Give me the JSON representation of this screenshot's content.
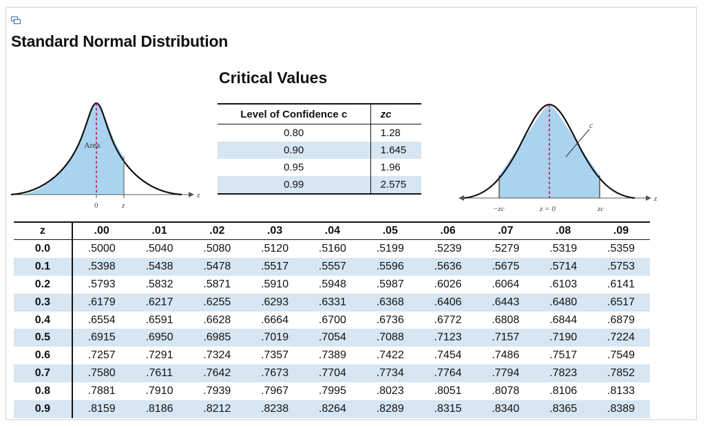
{
  "page": {
    "title": "Standard Normal Distribution"
  },
  "critical_values": {
    "title": "Critical Values",
    "header_confidence": "Level of Confidence c",
    "header_z": "zc",
    "rows": [
      {
        "c": "0.80",
        "z": "1.28"
      },
      {
        "c": "0.90",
        "z": "1.645"
      },
      {
        "c": "0.95",
        "z": "1.96"
      },
      {
        "c": "0.99",
        "z": "2.575"
      }
    ]
  },
  "left_curve": {
    "area_label": "Area",
    "tick_zero": "0",
    "tick_z": "z",
    "axis_label": "z"
  },
  "right_curve": {
    "c_label": "c",
    "tick_neg": "−zc",
    "tick_mid": "z = 0",
    "tick_pos": "zc",
    "axis_label": "z"
  },
  "z_table": {
    "headers": [
      "z",
      ".00",
      ".01",
      ".02",
      ".03",
      ".04",
      ".05",
      ".06",
      ".07",
      ".08",
      ".09"
    ],
    "rows": [
      {
        "z": "0.0",
        "values": [
          ".5000",
          ".5040",
          ".5080",
          ".5120",
          ".5160",
          ".5199",
          ".5239",
          ".5279",
          ".5319",
          ".5359"
        ]
      },
      {
        "z": "0.1",
        "values": [
          ".5398",
          ".5438",
          ".5478",
          ".5517",
          ".5557",
          ".5596",
          ".5636",
          ".5675",
          ".5714",
          ".5753"
        ]
      },
      {
        "z": "0.2",
        "values": [
          ".5793",
          ".5832",
          ".5871",
          ".5910",
          ".5948",
          ".5987",
          ".6026",
          ".6064",
          ".6103",
          ".6141"
        ]
      },
      {
        "z": "0.3",
        "values": [
          ".6179",
          ".6217",
          ".6255",
          ".6293",
          ".6331",
          ".6368",
          ".6406",
          ".6443",
          ".6480",
          ".6517"
        ]
      },
      {
        "z": "0.4",
        "values": [
          ".6554",
          ".6591",
          ".6628",
          ".6664",
          ".6700",
          ".6736",
          ".6772",
          ".6808",
          ".6844",
          ".6879"
        ]
      },
      {
        "z": "0.5",
        "values": [
          ".6915",
          ".6950",
          ".6985",
          ".7019",
          ".7054",
          ".7088",
          ".7123",
          ".7157",
          ".7190",
          ".7224"
        ]
      },
      {
        "z": "0.6",
        "values": [
          ".7257",
          ".7291",
          ".7324",
          ".7357",
          ".7389",
          ".7422",
          ".7454",
          ".7486",
          ".7517",
          ".7549"
        ]
      },
      {
        "z": "0.7",
        "values": [
          ".7580",
          ".7611",
          ".7642",
          ".7673",
          ".7704",
          ".7734",
          ".7764",
          ".7794",
          ".7823",
          ".7852"
        ]
      },
      {
        "z": "0.8",
        "values": [
          ".7881",
          ".7910",
          ".7939",
          ".7967",
          ".7995",
          ".8023",
          ".8051",
          ".8078",
          ".8106",
          ".8133"
        ]
      },
      {
        "z": "0.9",
        "values": [
          ".8159",
          ".8186",
          ".8212",
          ".8238",
          ".8264",
          ".8289",
          ".8315",
          ".8340",
          ".8365",
          ".8389"
        ]
      }
    ]
  },
  "colors": {
    "shade": "#d6e6f2",
    "curve_fill": "#a9d3ee",
    "dash_line": "#c2185b",
    "icon": "#4a6fd0"
  }
}
